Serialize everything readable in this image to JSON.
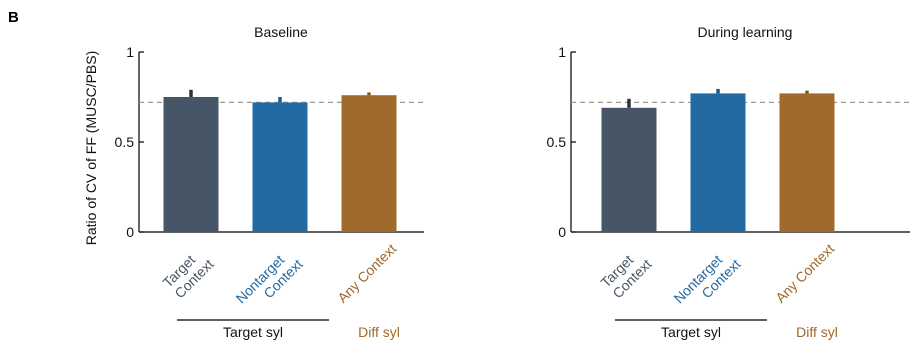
{
  "panel_label": "B",
  "ylabel": "Ratio of CV of FF (MUSC/PBS)",
  "colors": {
    "target": "#475666",
    "nontarget": "#2369a2",
    "diff": "#9f6a2b",
    "dashed": "#999999",
    "err": "#2b3540"
  },
  "group_labels": {
    "target_syl": "Target syl",
    "diff_syl": "Diff syl"
  },
  "chart_data": [
    {
      "type": "bar",
      "title": "Baseline",
      "categories": [
        "Target Context",
        "Nontarget Context",
        "Any Context"
      ],
      "category_lines": [
        [
          "Target",
          "Context"
        ],
        [
          "Nontarget",
          "Context"
        ],
        [
          "Any Context"
        ]
      ],
      "values": [
        0.75,
        0.72,
        0.76
      ],
      "errors": [
        0.04,
        0.03,
        0.015
      ],
      "reference_line": 0.72,
      "ylim": [
        0,
        1
      ],
      "yticks": [
        "0",
        "0.5",
        "1"
      ],
      "ytick_values": [
        0,
        0.5,
        1
      ]
    },
    {
      "type": "bar",
      "title": "During learning",
      "categories": [
        "Target Context",
        "Nontarget Context",
        "Any Context"
      ],
      "category_lines": [
        [
          "Target",
          "Context"
        ],
        [
          "Nontarget",
          "Context"
        ],
        [
          "Any Context"
        ]
      ],
      "values": [
        0.69,
        0.77,
        0.77
      ],
      "errors": [
        0.05,
        0.025,
        0.015
      ],
      "reference_line": 0.72,
      "ylim": [
        0,
        1
      ],
      "yticks": [
        "0",
        "0.5",
        "1"
      ],
      "ytick_values": [
        0,
        0.5,
        1
      ]
    }
  ]
}
